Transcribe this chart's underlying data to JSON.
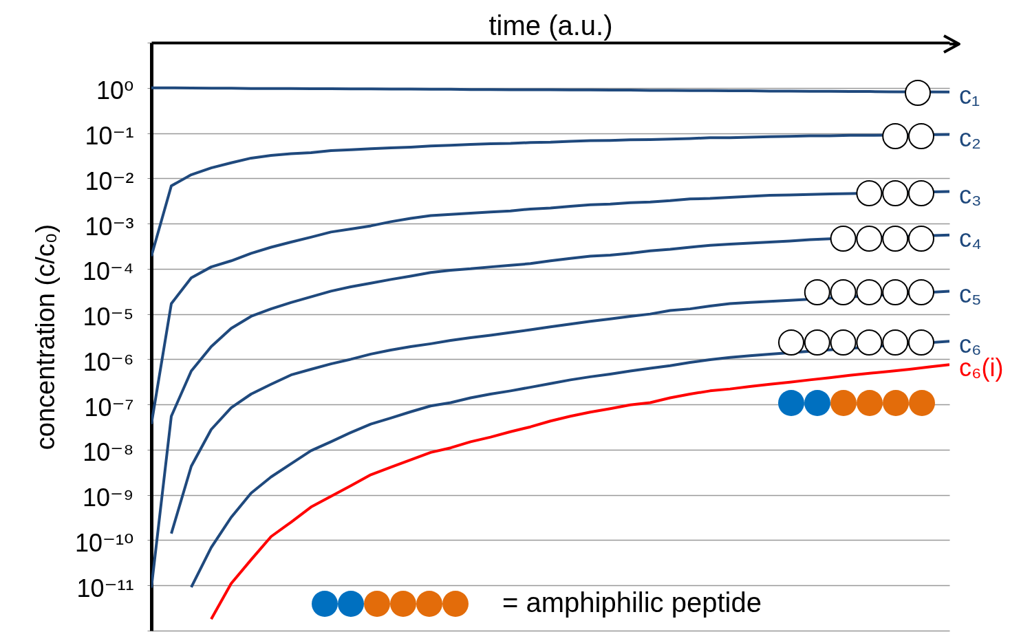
{
  "chart_data": {
    "type": "line",
    "xlabel": "time (a.u.)",
    "ylabel": "concentration (c/c₀)",
    "categories": [
      null,
      null,
      null,
      null,
      null,
      null,
      null,
      null,
      null,
      null,
      null,
      null,
      null,
      null,
      null,
      null,
      null,
      null,
      null,
      null,
      null,
      null,
      null,
      null,
      null,
      null,
      null,
      null,
      null,
      null,
      null,
      null,
      null,
      null,
      null,
      null,
      null,
      null,
      null,
      null,
      null
    ],
    "ylim": [
      1e-12,
      10
    ],
    "log": true,
    "yticks": [
      {
        "value": 10,
        "label": null
      },
      {
        "value": 1,
        "label": "10⁰"
      },
      {
        "value": 0.1,
        "label": "10⁻¹"
      },
      {
        "value": 0.01,
        "label": "10⁻²"
      },
      {
        "value": 0.001,
        "label": "10⁻³"
      },
      {
        "value": 0.0001,
        "label": "10⁻⁴"
      },
      {
        "value": 1e-05,
        "label": "10⁻⁵"
      },
      {
        "value": 1e-06,
        "label": "10⁻⁶"
      },
      {
        "value": 1e-07,
        "label": "10⁻⁷"
      },
      {
        "value": 1e-08,
        "label": "10⁻⁸"
      },
      {
        "value": 1e-09,
        "label": "10⁻⁹"
      },
      {
        "value": 1e-10,
        "label": "10⁻¹⁰"
      },
      {
        "value": 1e-11,
        "label": "10⁻¹¹"
      },
      {
        "value": 1e-12,
        "label": null
      }
    ],
    "tick_labels": "y",
    "grid": "y",
    "annotations": [
      "= amphiphilic peptide"
    ],
    "series": [
      {
        "name": "c₁",
        "color": "#1f497d",
        "values": [
          1.0,
          1.0,
          0.99,
          0.98,
          0.98,
          0.97,
          0.97,
          0.97,
          0.96,
          0.96,
          0.95,
          0.95,
          0.94,
          0.94,
          0.93,
          0.93,
          0.92,
          0.92,
          0.91,
          0.91,
          0.91,
          0.9,
          0.9,
          0.89,
          0.89,
          0.88,
          0.88,
          0.87,
          0.87,
          0.86,
          0.86,
          0.85,
          0.85,
          0.84,
          0.84,
          0.83,
          0.83,
          0.82,
          null,
          null,
          0.81
        ]
      },
      {
        "name": "c₂",
        "color": "#1f497d",
        "values": [
          0.00019,
          0.0068,
          0.012,
          0.017,
          0.022,
          0.028,
          0.032,
          0.035,
          0.037,
          0.041,
          0.043,
          0.045,
          0.047,
          0.049,
          0.052,
          0.054,
          0.056,
          0.058,
          0.059,
          0.062,
          0.063,
          0.066,
          0.068,
          0.069,
          0.071,
          0.072,
          0.074,
          0.076,
          0.079,
          0.079,
          0.081,
          0.083,
          0.085,
          0.087,
          0.087,
          0.089,
          0.089,
          null,
          null,
          null,
          0.093
        ]
      },
      {
        "name": "c₃",
        "color": "#1f497d",
        "values": [
          3.7e-08,
          1.7e-05,
          6.3e-05,
          0.00011,
          0.00015,
          0.00022,
          0.0003,
          0.00039,
          0.0005,
          0.00065,
          0.00076,
          0.00089,
          0.0011,
          0.0013,
          0.0015,
          0.0016,
          0.0017,
          0.0018,
          0.0019,
          0.0021,
          0.0022,
          0.0024,
          0.0026,
          0.0027,
          0.0029,
          0.003,
          0.0032,
          0.0035,
          0.0036,
          0.0038,
          0.004,
          0.0042,
          0.0043,
          0.0044,
          0.0045,
          0.0046,
          null,
          null,
          null,
          null,
          0.0051
        ]
      },
      {
        "name": "c₄",
        "color": "#1f497d",
        "values": [
          8.9e-12,
          5.5e-08,
          5.5e-07,
          1.9e-06,
          4.8e-06,
          8.9e-06,
          1.3e-05,
          1.8e-05,
          2.4e-05,
          3.2e-05,
          4e-05,
          4.8e-05,
          5.8e-05,
          6.9e-05,
          8.3e-05,
          9.3e-05,
          0.0001,
          0.00011,
          0.00012,
          0.00013,
          0.00015,
          0.00017,
          0.00019,
          0.0002,
          0.00022,
          0.00025,
          0.00027,
          0.0003,
          0.00033,
          0.00035,
          0.00037,
          0.00039,
          0.00041,
          0.00044,
          0.00046,
          null,
          null,
          null,
          null,
          null,
          0.00056
        ]
      },
      {
        "name": "c₅",
        "color": "#1f497d",
        "values": [
          null,
          1.4e-10,
          4.3e-09,
          2.8e-08,
          8.5e-08,
          1.7e-07,
          2.8e-07,
          4.5e-07,
          6e-07,
          7.9e-07,
          1e-06,
          1.3e-06,
          1.6e-06,
          1.9e-06,
          2.2e-06,
          2.6e-06,
          3e-06,
          3.4e-06,
          3.9e-06,
          4.5e-06,
          5.2e-06,
          6e-06,
          6.9e-06,
          7.8e-06,
          8.9e-06,
          1e-05,
          1.2e-05,
          1.3e-05,
          1.5e-05,
          1.7e-05,
          1.8e-05,
          1.9e-05,
          2e-05,
          null,
          null,
          null,
          null,
          null,
          null,
          null,
          3.2e-05
        ]
      },
      {
        "name": "c₆",
        "color": "#1f497d",
        "values": [
          null,
          null,
          9.1e-12,
          6.9e-11,
          3.2e-10,
          1.1e-09,
          2.5e-09,
          4.9e-09,
          9.5e-09,
          1.5e-08,
          2.4e-08,
          3.7e-08,
          5e-08,
          6.9e-08,
          9.3e-08,
          1.1e-07,
          1.4e-07,
          1.7e-07,
          2e-07,
          2.4e-07,
          2.9e-07,
          3.5e-07,
          4.1e-07,
          4.7e-07,
          5.5e-07,
          6.3e-07,
          7.2e-07,
          8.5e-07,
          9.8e-07,
          1.1e-06,
          1.2e-06,
          1.3e-06,
          null,
          null,
          null,
          null,
          null,
          null,
          null,
          null,
          2.5e-06
        ]
      },
      {
        "name": "c₆(i)",
        "color": "#ff0000",
        "values": [
          null,
          null,
          null,
          1.8e-12,
          1.1e-11,
          3.7e-11,
          1.2e-10,
          2.5e-10,
          5.4e-10,
          9.3e-10,
          1.6e-09,
          2.8e-09,
          4.1e-09,
          6e-09,
          8.7e-09,
          1.1e-08,
          1.5e-08,
          1.9e-08,
          2.5e-08,
          3.2e-08,
          4.3e-08,
          5.5e-08,
          6.8e-08,
          8.1e-08,
          9.8e-08,
          1.1e-07,
          1.4e-07,
          1.7e-07,
          2e-07,
          2.2e-07,
          2.5e-07,
          2.8e-07,
          3.1e-07,
          3.5e-07,
          3.9e-07,
          4.4e-07,
          4.9e-07,
          5.4e-07,
          6e-07,
          6.8e-07,
          7.6e-07
        ]
      }
    ]
  }
}
